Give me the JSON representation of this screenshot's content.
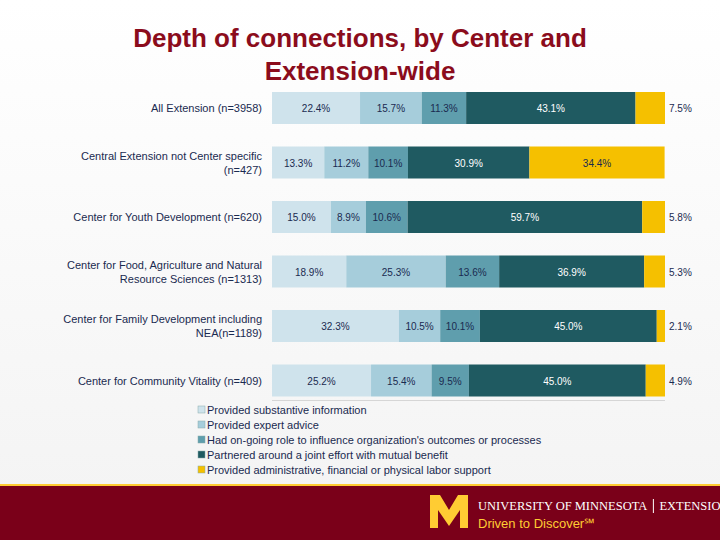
{
  "chart_data": {
    "type": "bar",
    "title": "Depth of connections, by Center and Extension-wide",
    "orientation": "horizontal",
    "stacked": true,
    "data_labels": true,
    "tick_labels": false,
    "xlim": [
      0,
      100
    ],
    "categories": [
      "All Extension (n=3958)",
      "Central Extension not Center specific (n=427)",
      "Center for Youth Development (n=620)",
      "Center for Food, Agriculture and Natural Resource Sciences (n=1313)",
      "Center for Family Development including NEA(n=1189)",
      "Center for Community Vitality (n=409)"
    ],
    "series": [
      {
        "name": "Provided substantive information",
        "color": "#cfe3ec",
        "values": [
          22.4,
          13.3,
          15.0,
          18.9,
          32.3,
          25.2
        ],
        "value_labels": [
          "22.4%",
          "13.3%",
          "15.0%",
          "18.9%",
          "32.3%",
          "25.2%"
        ]
      },
      {
        "name": "Provided expert advice",
        "color": "#a6cddb",
        "values": [
          15.7,
          11.2,
          8.9,
          25.3,
          10.5,
          15.4
        ],
        "value_labels": [
          "15.7%",
          "11.2%",
          "8.9%",
          "25.3%",
          "10.5%",
          "15.4%"
        ]
      },
      {
        "name": "Had on-going role to influence organization's outcomes or processes",
        "color": "#5f9ead",
        "values": [
          11.3,
          10.1,
          10.6,
          13.6,
          10.1,
          9.5
        ],
        "value_labels": [
          "11.3%",
          "10.1%",
          "10.6%",
          "13.6%",
          "10.1%",
          "9.5%"
        ]
      },
      {
        "name": "Partnered around a joint effort with mutual benefit",
        "color": "#1f5a61",
        "values": [
          43.1,
          30.9,
          59.7,
          36.9,
          45.0,
          45.0
        ],
        "value_labels": [
          "43.1%",
          "30.9%",
          "59.7%",
          "36.9%",
          "45.0%",
          "45.0%"
        ]
      },
      {
        "name": "Provided administrative, financial or physical labor support",
        "color": "#f5c000",
        "values": [
          7.5,
          34.4,
          5.8,
          5.3,
          2.1,
          4.9
        ],
        "value_labels": [
          "7.5%",
          "34.4%",
          "5.8%",
          "5.3%",
          "2.1%",
          "4.9%"
        ]
      }
    ]
  },
  "footer": {
    "organization": "UNIVERSITY OF MINNESOTA",
    "unit": "EXTENSION",
    "tagline": "Driven to Discover℠"
  }
}
